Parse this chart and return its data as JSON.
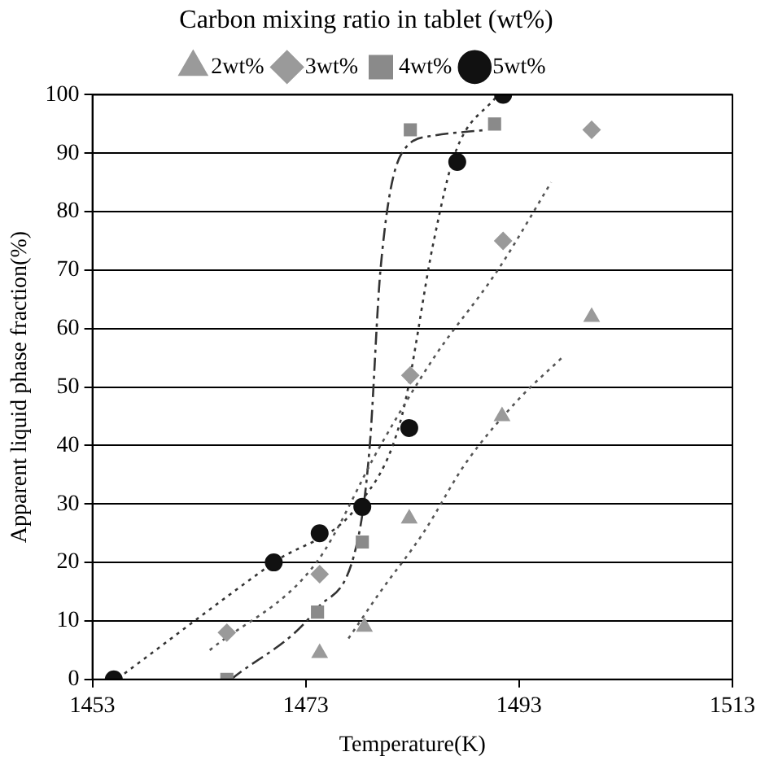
{
  "chart_data": {
    "type": "scatter",
    "xlabel": "Temperature(K)",
    "ylabel": "Apparent liquid phase fraction(%)",
    "legend_title": "Carbon mixing ratio in tablet (wt%)",
    "legend": "top",
    "grid": "y",
    "xlim": [
      1453,
      1513
    ],
    "xticks": [
      1453,
      1473,
      1493,
      1513
    ],
    "ylim": [
      0,
      100
    ],
    "yticks": [
      0,
      10,
      20,
      30,
      40,
      50,
      60,
      70,
      80,
      90,
      100
    ],
    "series": [
      {
        "name": "2wt%",
        "color": "#9a9a9a",
        "marker": "triangle",
        "x": [
          1474.3,
          1478.5,
          1482.7,
          1491.4,
          1499.8
        ],
        "values": [
          4.5,
          9,
          27.5,
          45,
          62
        ]
      },
      {
        "name": "3wt%",
        "color": "#9a9a9a",
        "marker": "diamond",
        "x": [
          1465.6,
          1474.3,
          1482.8,
          1491.5,
          1499.8
        ],
        "values": [
          8,
          18,
          52,
          75,
          94
        ]
      },
      {
        "name": "4wt%",
        "color": "#8a8a8a",
        "marker": "square",
        "x": [
          1465.6,
          1474.1,
          1478.3,
          1482.8,
          1490.7
        ],
        "values": [
          0,
          11.5,
          23.5,
          94,
          95
        ]
      },
      {
        "name": "5wt%",
        "color": "#111111",
        "marker": "circle",
        "x": [
          1455,
          1470,
          1474.3,
          1478.3,
          1482.7,
          1487.2,
          1491.5
        ],
        "values": [
          0,
          20,
          25,
          29.5,
          43,
          88.5,
          100
        ]
      },
      {
        "type": "line",
        "color": "#555555",
        "marker": "none",
        "line_style": "dotted",
        "x": [
          1477,
          1480,
          1484,
          1488,
          1493,
          1497
        ],
        "values": [
          7,
          15,
          25,
          37,
          48,
          55
        ]
      },
      {
        "type": "line",
        "color": "#555555",
        "marker": "none",
        "line_style": "dotted",
        "x": [
          1464,
          1474,
          1480,
          1485,
          1491,
          1496
        ],
        "values": [
          5,
          20,
          40,
          55,
          70,
          85
        ]
      },
      {
        "type": "line",
        "color": "#333333",
        "marker": "none",
        "line_style": "dashed",
        "x": [
          1466,
          1474,
          1478,
          1479,
          1480,
          1482,
          1485,
          1490
        ],
        "values": [
          0,
          12,
          25,
          40,
          70,
          90,
          93,
          94
        ]
      },
      {
        "type": "line",
        "color": "#333333",
        "marker": "none",
        "line_style": "dotted",
        "x": [
          1456,
          1470,
          1478,
          1482,
          1485,
          1487,
          1491
        ],
        "values": [
          1,
          20,
          30,
          45,
          75,
          90,
          100
        ]
      }
    ]
  }
}
